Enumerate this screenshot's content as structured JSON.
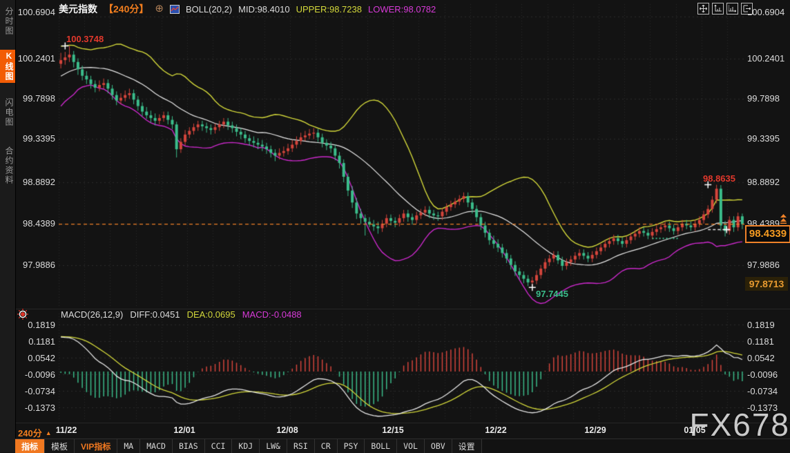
{
  "ui": {
    "header": {
      "symbol": "美元指数",
      "period": "【240分】",
      "boll_label": "BOLL(20,2)",
      "mid_label": "MID:98.4010",
      "upper_label": "UPPER:98.7238",
      "lower_label": "LOWER:98.0782"
    },
    "sidebar": {
      "tabs": [
        {
          "label": "分时图",
          "active": false
        },
        {
          "label": "K线图",
          "active": true
        },
        {
          "label": "闪电图",
          "active": false
        },
        {
          "label": "合约资料",
          "active": false
        }
      ]
    },
    "main_ticks": [
      "100.6904",
      "100.2401",
      "99.7898",
      "99.3395",
      "98.8892",
      "98.4389",
      "97.9886"
    ],
    "macd_ticks": [
      "0.1819",
      "0.1181",
      "0.0542",
      "-0.0096",
      "-0.0734",
      "-0.1373"
    ],
    "macd_header": {
      "label": "MACD(26,12,9)",
      "diff_label": "DIFF:0.0451",
      "dea_label": "DEA:0.0695",
      "macd_label": "MACD:-0.0488"
    },
    "annotations": {
      "high_left": "100.3748",
      "high_right": "98.8635",
      "low_mid": "97.7445"
    },
    "current_price": "98.4339",
    "secondary_price": "97.8713",
    "period_label": "240分",
    "dates": [
      "11/22",
      "12/01",
      "12/08",
      "12/15",
      "12/22",
      "12/29",
      "01/05"
    ],
    "toolbar": [
      "指标",
      "模板",
      "VIP指标",
      "MA",
      "MACD",
      "BIAS",
      "CCI",
      "KDJ",
      "LW&",
      "RSI",
      "CR",
      "PSY",
      "BOLL",
      "VOL",
      "OBV",
      "设置"
    ],
    "watermark": "FX678"
  },
  "colors": {
    "up": "#d5453c",
    "down": "#3bbd8b",
    "boll_upper": "#d3d83a",
    "boll_mid": "#e8e8e8",
    "boll_lower": "#cc29cc",
    "current_line": "#f08229",
    "accent_orange": "#f07d1e",
    "annotation_red": "#e2382c",
    "annotation_green": "#3bbd8b",
    "grid": "#2e2e2e"
  },
  "chart_data": {
    "type": "candlestick",
    "symbol": "美元指数",
    "period": "240分",
    "price_axis_ticks": [
      100.6904,
      100.2401,
      99.7898,
      99.3395,
      98.8892,
      98.4389,
      97.9886
    ],
    "macd_axis_ticks": [
      0.1819,
      0.1181,
      0.0542,
      -0.0096,
      -0.0734,
      -0.1373
    ],
    "x_labels": [
      "11/22",
      "12/01",
      "12/08",
      "12/15",
      "12/22",
      "12/29",
      "01/05"
    ],
    "current_price": 98.4339,
    "secondary_level": 97.8713,
    "boll": {
      "period": 20,
      "k": 2,
      "mid": 98.401,
      "upper": 98.7238,
      "lower": 98.0782
    },
    "macd": {
      "slow": 26,
      "fast": 12,
      "signal": 9,
      "diff": 0.0451,
      "dea": 0.0695,
      "macd": -0.0488
    },
    "annotations": [
      {
        "label": "100.3748",
        "index": 1,
        "price": 100.3748,
        "kind": "high"
      },
      {
        "label": "98.8635",
        "index": 151,
        "price": 98.8635,
        "kind": "high"
      },
      {
        "label": "97.7445",
        "index": 110,
        "price": 97.7445,
        "kind": "low"
      }
    ],
    "markers": [
      {
        "type": "dotted-green",
        "from": 138,
        "to": 144,
        "price": 98.28
      },
      {
        "type": "dashed-white-cross",
        "from": 151,
        "to": 156,
        "price": 98.375
      }
    ],
    "warmup_closes": [
      99.4,
      99.45,
      99.42,
      99.5,
      99.55,
      99.52,
      99.6,
      99.65,
      99.62,
      99.7,
      99.75,
      99.72,
      99.8,
      99.85,
      99.82,
      99.9,
      99.95,
      99.92,
      100.0,
      100.05,
      100.02,
      100.1,
      100.15,
      100.12,
      100.2,
      100.26,
      100.24,
      100.2,
      100.22,
      100.18
    ],
    "candles": [
      [
        100.18,
        100.3,
        100.13,
        100.22
      ],
      [
        100.22,
        100.31,
        100.17,
        100.25
      ],
      [
        100.25,
        100.3748,
        100.2,
        100.28
      ],
      [
        100.28,
        100.32,
        100.14,
        100.2
      ],
      [
        100.2,
        100.24,
        100.06,
        100.12
      ],
      [
        100.12,
        100.16,
        100.0,
        100.05
      ],
      [
        100.05,
        100.1,
        99.96,
        100.01
      ],
      [
        100.01,
        100.05,
        99.91,
        99.96
      ],
      [
        99.96,
        100.0,
        99.87,
        99.92
      ],
      [
        99.92,
        100.0,
        99.88,
        99.95
      ],
      [
        99.95,
        100.02,
        99.91,
        99.97
      ],
      [
        99.97,
        100.01,
        99.86,
        99.91
      ],
      [
        99.91,
        99.95,
        99.79,
        99.84
      ],
      [
        99.84,
        99.88,
        99.73,
        99.78
      ],
      [
        99.78,
        99.86,
        99.74,
        99.81
      ],
      [
        99.81,
        99.89,
        99.77,
        99.84
      ],
      [
        99.84,
        99.91,
        99.8,
        99.86
      ],
      [
        99.86,
        99.9,
        99.74,
        99.79
      ],
      [
        99.79,
        99.83,
        99.67,
        99.72
      ],
      [
        99.72,
        99.76,
        99.61,
        99.66
      ],
      [
        99.66,
        99.71,
        99.58,
        99.62
      ],
      [
        99.62,
        99.67,
        99.54,
        99.59
      ],
      [
        99.59,
        99.64,
        99.51,
        99.56
      ],
      [
        99.56,
        99.63,
        99.52,
        99.59
      ],
      [
        99.59,
        99.66,
        99.55,
        99.62
      ],
      [
        99.62,
        99.66,
        99.52,
        99.57
      ],
      [
        99.57,
        99.61,
        99.47,
        99.52
      ],
      [
        99.52,
        99.55,
        99.16,
        99.25
      ],
      [
        99.25,
        99.37,
        99.21,
        99.33
      ],
      [
        99.33,
        99.46,
        99.29,
        99.41
      ],
      [
        99.41,
        99.49,
        99.37,
        99.45
      ],
      [
        99.45,
        99.53,
        99.41,
        99.49
      ],
      [
        99.49,
        99.56,
        99.45,
        99.52
      ],
      [
        99.52,
        99.56,
        99.45,
        99.5
      ],
      [
        99.5,
        99.54,
        99.43,
        99.48
      ],
      [
        99.48,
        99.52,
        99.41,
        99.46
      ],
      [
        99.46,
        99.53,
        99.42,
        99.49
      ],
      [
        99.49,
        99.56,
        99.45,
        99.52
      ],
      [
        99.52,
        99.59,
        99.48,
        99.55
      ],
      [
        99.55,
        99.59,
        99.46,
        99.51
      ],
      [
        99.51,
        99.55,
        99.43,
        99.48
      ],
      [
        99.48,
        99.52,
        99.39,
        99.44
      ],
      [
        99.44,
        99.48,
        99.36,
        99.41
      ],
      [
        99.41,
        99.45,
        99.32,
        99.37
      ],
      [
        99.37,
        99.41,
        99.29,
        99.34
      ],
      [
        99.34,
        99.39,
        99.27,
        99.32
      ],
      [
        99.32,
        99.37,
        99.25,
        99.3
      ],
      [
        99.3,
        99.35,
        99.23,
        99.28
      ],
      [
        99.28,
        99.32,
        99.2,
        99.25
      ],
      [
        99.25,
        99.29,
        99.16,
        99.21
      ],
      [
        99.21,
        99.25,
        99.12,
        99.18
      ],
      [
        99.18,
        99.26,
        99.14,
        99.21
      ],
      [
        99.21,
        99.28,
        99.17,
        99.23
      ],
      [
        99.23,
        99.31,
        99.19,
        99.26
      ],
      [
        99.26,
        99.35,
        99.22,
        99.3
      ],
      [
        99.3,
        99.39,
        99.26,
        99.34
      ],
      [
        99.34,
        99.43,
        99.3,
        99.38
      ],
      [
        99.38,
        99.45,
        99.34,
        99.4
      ],
      [
        99.4,
        99.47,
        99.36,
        99.42
      ],
      [
        99.42,
        99.48,
        99.36,
        99.43
      ],
      [
        99.43,
        99.47,
        99.33,
        99.38
      ],
      [
        99.38,
        99.42,
        99.27,
        99.32
      ],
      [
        99.32,
        99.36,
        99.24,
        99.29
      ],
      [
        99.29,
        99.33,
        99.21,
        99.26
      ],
      [
        99.26,
        99.3,
        99.13,
        99.18
      ],
      [
        99.18,
        99.22,
        99.04,
        99.1
      ],
      [
        99.1,
        99.14,
        98.89,
        98.95
      ],
      [
        98.95,
        98.99,
        98.74,
        98.8
      ],
      [
        98.8,
        98.85,
        98.61,
        98.67
      ],
      [
        98.67,
        98.72,
        98.49,
        98.55
      ],
      [
        98.55,
        98.6,
        98.44,
        98.5
      ],
      [
        98.5,
        98.54,
        98.31,
        98.46
      ],
      [
        98.46,
        98.51,
        98.4,
        98.43
      ],
      [
        98.43,
        98.48,
        98.36,
        98.41
      ],
      [
        98.41,
        98.46,
        98.33,
        98.39
      ],
      [
        98.39,
        98.48,
        98.35,
        98.44
      ],
      [
        98.44,
        98.54,
        98.4,
        98.5
      ],
      [
        98.5,
        98.54,
        98.42,
        98.47
      ],
      [
        98.47,
        98.51,
        98.4,
        98.45
      ],
      [
        98.45,
        98.54,
        98.41,
        98.5
      ],
      [
        98.5,
        98.59,
        98.46,
        98.55
      ],
      [
        98.55,
        98.59,
        98.46,
        98.51
      ],
      [
        98.51,
        98.55,
        98.43,
        98.48
      ],
      [
        98.48,
        98.57,
        98.44,
        98.53
      ],
      [
        98.53,
        98.6,
        98.49,
        98.56
      ],
      [
        98.56,
        98.63,
        98.52,
        98.59
      ],
      [
        98.59,
        98.63,
        98.5,
        98.55
      ],
      [
        98.55,
        98.59,
        98.48,
        98.53
      ],
      [
        98.53,
        98.57,
        98.47,
        98.52
      ],
      [
        98.52,
        98.61,
        98.48,
        98.57
      ],
      [
        98.57,
        98.66,
        98.53,
        98.62
      ],
      [
        98.62,
        98.69,
        98.58,
        98.65
      ],
      [
        98.65,
        98.72,
        98.61,
        98.68
      ],
      [
        98.68,
        98.75,
        98.64,
        98.71
      ],
      [
        98.71,
        98.78,
        98.67,
        98.74
      ],
      [
        98.74,
        98.78,
        98.62,
        98.67
      ],
      [
        98.67,
        98.71,
        98.55,
        98.6
      ],
      [
        98.6,
        98.64,
        98.46,
        98.51
      ],
      [
        98.51,
        98.55,
        98.37,
        98.42
      ],
      [
        98.42,
        98.46,
        98.29,
        98.34
      ],
      [
        98.34,
        98.38,
        98.21,
        98.26
      ],
      [
        98.26,
        98.31,
        98.17,
        98.22
      ],
      [
        98.22,
        98.27,
        98.13,
        98.18
      ],
      [
        98.18,
        98.22,
        98.07,
        98.12
      ],
      [
        98.12,
        98.16,
        98.01,
        98.06
      ],
      [
        98.06,
        98.1,
        97.94,
        97.99
      ],
      [
        97.99,
        98.03,
        97.87,
        97.92
      ],
      [
        97.92,
        97.96,
        97.83,
        97.88
      ],
      [
        97.88,
        97.92,
        97.79,
        97.84
      ],
      [
        97.84,
        97.88,
        97.76,
        97.8
      ],
      [
        97.8,
        97.86,
        97.7445,
        97.82
      ],
      [
        97.82,
        97.93,
        97.78,
        97.88
      ],
      [
        97.88,
        97.99,
        97.84,
        97.95
      ],
      [
        97.95,
        98.06,
        97.91,
        98.02
      ],
      [
        98.02,
        98.1,
        97.98,
        98.06
      ],
      [
        98.06,
        98.14,
        98.02,
        98.1
      ],
      [
        98.1,
        98.14,
        98.0,
        98.04
      ],
      [
        98.04,
        98.08,
        97.93,
        97.98
      ],
      [
        97.98,
        98.06,
        97.94,
        98.02
      ],
      [
        98.02,
        98.09,
        97.98,
        98.05
      ],
      [
        98.05,
        98.13,
        98.01,
        98.09
      ],
      [
        98.09,
        98.16,
        98.05,
        98.12
      ],
      [
        98.12,
        98.16,
        98.05,
        98.09
      ],
      [
        98.09,
        98.13,
        98.02,
        98.06
      ],
      [
        98.06,
        98.14,
        98.02,
        98.1
      ],
      [
        98.1,
        98.18,
        98.06,
        98.14
      ],
      [
        98.14,
        98.22,
        98.1,
        98.18
      ],
      [
        98.18,
        98.26,
        98.14,
        98.22
      ],
      [
        98.22,
        98.29,
        98.18,
        98.25
      ],
      [
        98.25,
        98.32,
        98.21,
        98.28
      ],
      [
        98.28,
        98.32,
        98.21,
        98.25
      ],
      [
        98.25,
        98.29,
        98.18,
        98.22
      ],
      [
        98.22,
        98.3,
        98.18,
        98.26
      ],
      [
        98.26,
        98.34,
        98.22,
        98.3
      ],
      [
        98.3,
        98.37,
        98.26,
        98.33
      ],
      [
        98.33,
        98.4,
        98.29,
        98.36
      ],
      [
        98.36,
        98.4,
        98.3,
        98.34
      ],
      [
        98.34,
        98.38,
        98.27,
        98.31
      ],
      [
        98.31,
        98.39,
        98.27,
        98.35
      ],
      [
        98.35,
        98.42,
        98.31,
        98.38
      ],
      [
        98.38,
        98.44,
        98.34,
        98.4
      ],
      [
        98.4,
        98.46,
        98.36,
        98.42
      ],
      [
        98.42,
        98.46,
        98.35,
        98.39
      ],
      [
        98.39,
        98.43,
        98.32,
        98.36
      ],
      [
        98.36,
        98.44,
        98.32,
        98.4
      ],
      [
        98.4,
        98.48,
        98.36,
        98.44
      ],
      [
        98.44,
        98.48,
        98.38,
        98.42
      ],
      [
        98.42,
        98.46,
        98.36,
        98.4
      ],
      [
        98.4,
        98.48,
        98.36,
        98.44
      ],
      [
        98.44,
        98.52,
        98.4,
        98.48
      ],
      [
        98.48,
        98.58,
        98.44,
        98.54
      ],
      [
        98.54,
        98.64,
        98.5,
        98.6
      ],
      [
        98.6,
        98.74,
        98.56,
        98.7
      ],
      [
        98.7,
        98.8635,
        98.66,
        98.82
      ],
      [
        98.82,
        98.86,
        98.36,
        98.42
      ],
      [
        98.42,
        98.47,
        98.3,
        98.36
      ],
      [
        98.36,
        98.52,
        98.32,
        98.48
      ],
      [
        98.48,
        98.52,
        98.35,
        98.4
      ],
      [
        98.4,
        98.56,
        98.36,
        98.52
      ],
      [
        98.52,
        98.55,
        98.38,
        98.4339
      ]
    ]
  }
}
